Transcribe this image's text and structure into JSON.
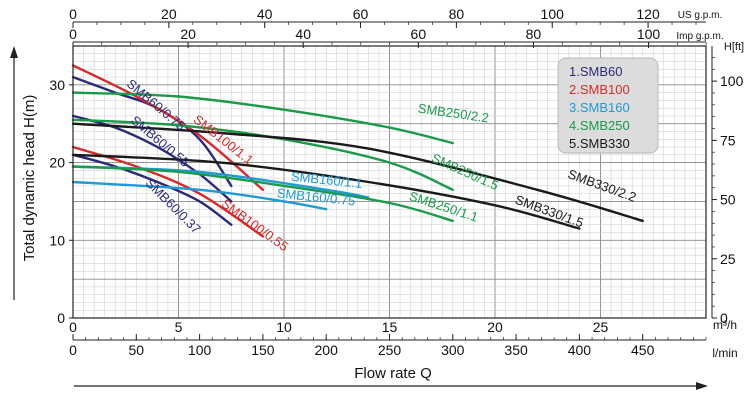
{
  "chart_data": {
    "type": "line",
    "title": "",
    "ylabel": "Total dynamic head H(m)",
    "ylabel_right": "H[ft]",
    "xlabel": "Flow rate Q",
    "x_unit_m3h": "m³/h",
    "x_unit_lmin": "l/min",
    "x_unit_us": "US g.p.m.",
    "x_unit_imp": "Imp g.p.m.",
    "xlim_m3h": [
      0,
      30
    ],
    "ylim_m": [
      0,
      35
    ],
    "ticks_m3h": [
      0,
      5,
      10,
      15,
      20,
      25
    ],
    "ticks_lmin": [
      0,
      50,
      100,
      150,
      200,
      250,
      300,
      350,
      400,
      450
    ],
    "ticks_us": [
      0,
      20,
      40,
      60,
      80,
      100,
      120
    ],
    "ticks_imp": [
      0,
      20,
      40,
      60,
      80,
      100
    ],
    "ticks_ft": [
      0,
      25,
      50,
      75,
      100
    ],
    "ticks_m": [
      0,
      10,
      20,
      30
    ],
    "grid": true,
    "legend": {
      "position": "top-right",
      "items": [
        {
          "text": "1.SMB60",
          "color": "#2b2a7a"
        },
        {
          "text": "2.SMB100",
          "color": "#d42b2b"
        },
        {
          "text": "3.SMB160",
          "color": "#1f9ad6"
        },
        {
          "text": "4.SMB250",
          "color": "#1a9a4a"
        },
        {
          "text": "5.SMB330",
          "color": "#1a1a1a"
        }
      ]
    },
    "series": [
      {
        "name": "SMB60/0.75",
        "color": "#2b2a7a",
        "x": [
          0,
          2,
          4,
          6,
          7.5
        ],
        "y": [
          31,
          29,
          27,
          23,
          17
        ]
      },
      {
        "name": "SMB60/0.55",
        "color": "#2b2a7a",
        "x": [
          0,
          2,
          4,
          6,
          7.5
        ],
        "y": [
          26,
          24.5,
          22,
          18.5,
          15
        ]
      },
      {
        "name": "SMB60/0.37",
        "color": "#2b2a7a",
        "x": [
          0,
          2,
          4,
          6,
          7.5
        ],
        "y": [
          21,
          19.5,
          17.5,
          15,
          12
        ]
      },
      {
        "name": "SMB100/1.1",
        "color": "#d42b2b",
        "x": [
          0,
          3,
          6,
          9
        ],
        "y": [
          32.5,
          28.5,
          23.5,
          16.5
        ]
      },
      {
        "name": "SMB100/0.55",
        "color": "#d42b2b",
        "x": [
          0,
          3,
          6,
          9
        ],
        "y": [
          22,
          19.5,
          16,
          10.5
        ]
      },
      {
        "name": "SMB160/1.1",
        "color": "#1f9ad6",
        "x": [
          0,
          6,
          12,
          14
        ],
        "y": [
          19.5,
          18.8,
          16.5,
          15.5
        ]
      },
      {
        "name": "SMB160/0.75",
        "color": "#1f9ad6",
        "x": [
          0,
          6,
          10,
          12
        ],
        "y": [
          17.5,
          16.5,
          15,
          14
        ]
      },
      {
        "name": "SMB250/2.2",
        "color": "#1a9a4a",
        "x": [
          0,
          5,
          10,
          15,
          18
        ],
        "y": [
          29,
          28.5,
          26.8,
          24.5,
          22.5
        ]
      },
      {
        "name": "SMB250/1.5",
        "color": "#1a9a4a",
        "x": [
          0,
          5,
          10,
          15,
          18
        ],
        "y": [
          25.5,
          24.8,
          23,
          20,
          16.5
        ]
      },
      {
        "name": "SMB250/1.1",
        "color": "#1a9a4a",
        "x": [
          0,
          5,
          10,
          15,
          18
        ],
        "y": [
          19.5,
          18.8,
          17,
          14.8,
          12.5
        ]
      },
      {
        "name": "SMB330/2.2",
        "color": "#1a1a1a",
        "x": [
          0,
          7,
          14,
          22,
          27
        ],
        "y": [
          25,
          23.8,
          21.8,
          16.5,
          12.5
        ]
      },
      {
        "name": "SMB330/1.5",
        "color": "#1a1a1a",
        "x": [
          0,
          7,
          14,
          20,
          24
        ],
        "y": [
          21,
          20,
          17.5,
          14.5,
          11.5
        ]
      }
    ],
    "curve_labels": [
      {
        "text": "SMB60/0.75",
        "color": "#2b2a7a",
        "x": 3.8,
        "y": 27,
        "angle": 40
      },
      {
        "text": "SMB60/0.55",
        "color": "#2b2a7a",
        "x": 4.0,
        "y": 22.3,
        "angle": 40
      },
      {
        "text": "SMB60/0.37",
        "color": "#2b2a7a",
        "x": 4.6,
        "y": 14,
        "angle": 45
      },
      {
        "text": "SMB100/1.1",
        "color": "#d42b2b",
        "x": 7.0,
        "y": 22.5,
        "angle": 38
      },
      {
        "text": "SMB100/0.55",
        "color": "#d42b2b",
        "x": 8.5,
        "y": 11.5,
        "angle": 36
      },
      {
        "text": "SMB160/1.1",
        "color": "#1f9ad6",
        "x": 12,
        "y": 17.2,
        "angle": 6
      },
      {
        "text": "SMB160/0.75",
        "color": "#1f9ad6",
        "x": 11.5,
        "y": 15,
        "angle": 6
      },
      {
        "text": "SMB250/2.2",
        "color": "#1a9a4a",
        "x": 18,
        "y": 25.8,
        "angle": 8
      },
      {
        "text": "SMB250/1.5",
        "color": "#1a9a4a",
        "x": 18.5,
        "y": 18.3,
        "angle": 24
      },
      {
        "text": "SMB250/1.1",
        "color": "#1a9a4a",
        "x": 17.5,
        "y": 13.8,
        "angle": 18
      },
      {
        "text": "SMB330/2.2",
        "color": "#1a1a1a",
        "x": 25,
        "y": 16.5,
        "angle": 20
      },
      {
        "text": "SMB330/1.5",
        "color": "#1a1a1a",
        "x": 22.5,
        "y": 13.2,
        "angle": 20
      }
    ]
  }
}
